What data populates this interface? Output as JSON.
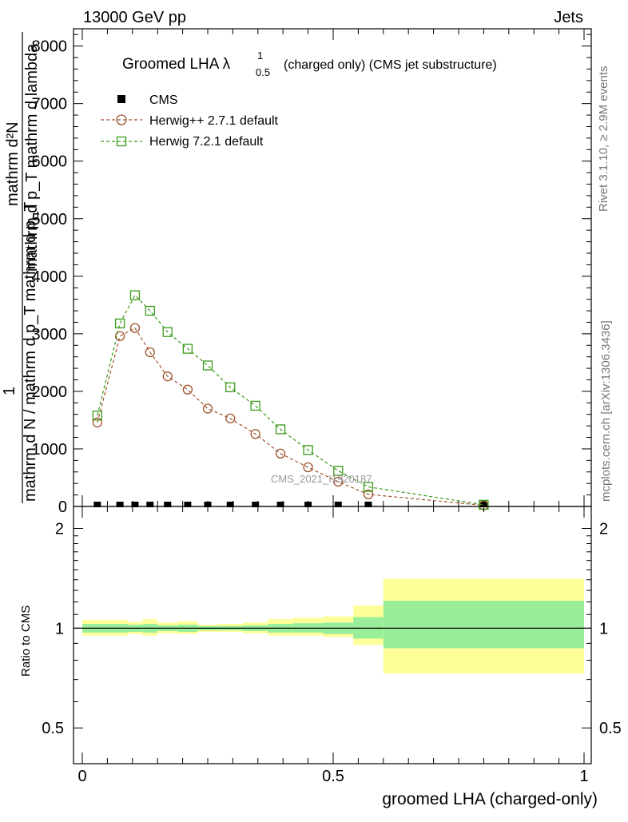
{
  "header": {
    "left": "13000 GeV pp",
    "right": "Jets"
  },
  "side_labels": {
    "rivet": "Rivet 3.1.10, ≥ 2.9M events",
    "mcplots": "mcplots.cern.ch [arXiv:1306.3436]"
  },
  "watermark": "CMS_2021_I1920187",
  "main_plot": {
    "title_prefix": "Groomed LHA ",
    "title_lambda": "λ",
    "title_sup": "1",
    "title_sub": "0.5",
    "title_suffix": "(charged only) (CMS jet substructure)",
    "ylabel_numerator": "mathrm d²N",
    "ylabel_denominator": "mathrm d p_T mathrm d lambda",
    "ylabel_numerator_b": "mathrm d N",
    "ylabel_prefix": "1",
    "ylabel_long": "mathrm d N / mathrm d p_T mathrm d p_T",
    "yticks": [
      "0",
      "1000",
      "2000",
      "3000",
      "4000",
      "5000",
      "6000",
      "7000",
      "8000"
    ],
    "ylim": [
      0,
      8300
    ]
  },
  "ratio_plot": {
    "ylabel": "Ratio to CMS",
    "yticks": [
      "0.5",
      "1",
      "2"
    ],
    "xlabel": "groomed LHA (charged-only)",
    "xticks": [
      "0",
      "0.5",
      "1"
    ]
  },
  "chart_data": {
    "type": "line",
    "xlim": [
      0,
      1
    ],
    "series": [
      {
        "name": "CMS",
        "marker": "filled-square",
        "color": "#000000",
        "x": [
          0.03,
          0.075,
          0.105,
          0.135,
          0.17,
          0.21,
          0.25,
          0.295,
          0.345,
          0.395,
          0.45,
          0.51,
          0.57,
          0.8
        ],
        "y": [
          0,
          0,
          0,
          0,
          0,
          0,
          0,
          0,
          0,
          0,
          0,
          0,
          0,
          0
        ]
      },
      {
        "name": "Herwig++ 2.7.1 default",
        "marker": "open-circle",
        "color": "#a0522d",
        "x": [
          0.03,
          0.075,
          0.105,
          0.135,
          0.17,
          0.21,
          0.25,
          0.295,
          0.345,
          0.395,
          0.45,
          0.51,
          0.57,
          0.8
        ],
        "y": [
          1460,
          2960,
          3100,
          2680,
          2260,
          2030,
          1700,
          1530,
          1260,
          920,
          680,
          430,
          210,
          20
        ]
      },
      {
        "name": "Herwig 7.2.1 default",
        "marker": "open-square",
        "color": "#3a9a1a",
        "x": [
          0.03,
          0.075,
          0.105,
          0.135,
          0.17,
          0.21,
          0.25,
          0.295,
          0.345,
          0.395,
          0.45,
          0.51,
          0.57,
          0.8
        ],
        "y": [
          1580,
          3180,
          3670,
          3400,
          3030,
          2740,
          2450,
          2070,
          1750,
          1340,
          980,
          620,
          340,
          30
        ]
      }
    ],
    "ratio_bands": {
      "edges": [
        0,
        0.09,
        0.12,
        0.15,
        0.19,
        0.23,
        0.27,
        0.32,
        0.37,
        0.42,
        0.48,
        0.54,
        0.6,
        1.0
      ],
      "inner_lo": [
        0.97,
        0.975,
        0.97,
        0.98,
        0.975,
        0.985,
        0.985,
        0.98,
        0.97,
        0.97,
        0.96,
        0.93,
        0.87
      ],
      "inner_hi": [
        1.03,
        1.025,
        1.03,
        1.02,
        1.025,
        1.015,
        1.015,
        1.02,
        1.03,
        1.035,
        1.04,
        1.08,
        1.21
      ],
      "outer_lo": [
        0.95,
        0.96,
        0.95,
        0.965,
        0.96,
        0.975,
        0.975,
        0.965,
        0.95,
        0.95,
        0.94,
        0.89,
        0.73
      ],
      "outer_hi": [
        1.06,
        1.045,
        1.065,
        1.04,
        1.05,
        1.025,
        1.03,
        1.04,
        1.065,
        1.075,
        1.085,
        1.17,
        1.41
      ],
      "inner_color": "#99ee99",
      "outer_color": "#ffff99"
    }
  }
}
